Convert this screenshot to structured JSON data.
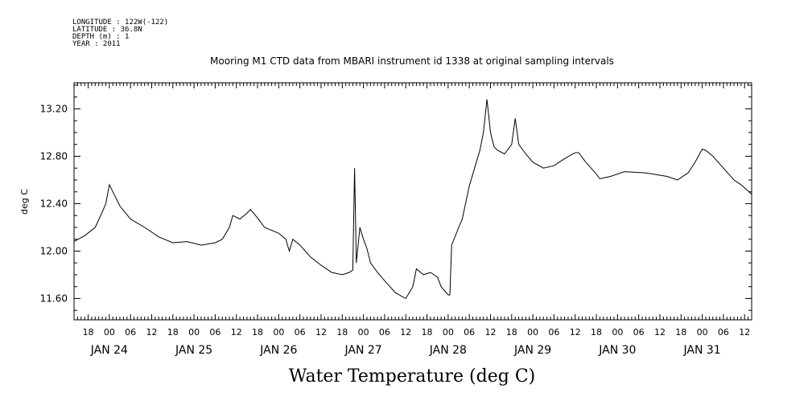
{
  "meta": {
    "longitude": "LONGITUDE : 122W(-122)",
    "latitude": "LATITUDE : 36.8N",
    "depth": "DEPTH (m) : 1",
    "year": "YEAR : 2011"
  },
  "chart_data": {
    "type": "line",
    "title": "Mooring M1 CTD data from MBARI instrument id 1338 at original sampling intervals",
    "xlabel": "Water Temperature (deg C)",
    "ylabel": "deg C",
    "ylim": [
      11.42,
      13.42
    ],
    "yticks": [
      "11.60",
      "12.00",
      "12.40",
      "12.80",
      "13.20"
    ],
    "xlim": [
      "2011-01-23T14:00",
      "2011-01-31T14:00"
    ],
    "hour_ticks": [
      "18",
      "00",
      "06",
      "12",
      "18",
      "00",
      "06",
      "12",
      "18",
      "00",
      "06",
      "12",
      "18",
      "00",
      "06",
      "12",
      "18",
      "00",
      "06",
      "12",
      "18",
      "00",
      "06",
      "12",
      "18",
      "00",
      "06",
      "12",
      "18",
      "00",
      "06",
      "12"
    ],
    "day_labels": [
      "JAN 24",
      "JAN 25",
      "JAN 26",
      "JAN 27",
      "JAN 28",
      "JAN 29",
      "JAN 30",
      "JAN 31"
    ],
    "grid": false,
    "series": [
      {
        "color": "#000000",
        "points": [
          [
            "2011-01-23T14:00",
            12.08
          ],
          [
            "2011-01-23T17:00",
            12.13
          ],
          [
            "2011-01-23T20:00",
            12.2
          ],
          [
            "2011-01-23T22:00",
            12.33
          ],
          [
            "2011-01-23T23:00",
            12.4
          ],
          [
            "2011-01-24T00:00",
            12.56
          ],
          [
            "2011-01-24T01:00",
            12.5
          ],
          [
            "2011-01-24T03:00",
            12.38
          ],
          [
            "2011-01-24T06:00",
            12.27
          ],
          [
            "2011-01-24T10:00",
            12.2
          ],
          [
            "2011-01-24T14:00",
            12.12
          ],
          [
            "2011-01-24T18:00",
            12.07
          ],
          [
            "2011-01-24T22:00",
            12.08
          ],
          [
            "2011-01-25T02:00",
            12.05
          ],
          [
            "2011-01-25T06:00",
            12.07
          ],
          [
            "2011-01-25T08:00",
            12.1
          ],
          [
            "2011-01-25T10:00",
            12.2
          ],
          [
            "2011-01-25T11:00",
            12.3
          ],
          [
            "2011-01-25T13:00",
            12.27
          ],
          [
            "2011-01-25T15:00",
            12.32
          ],
          [
            "2011-01-25T16:00",
            12.35
          ],
          [
            "2011-01-25T18:00",
            12.28
          ],
          [
            "2011-01-25T20:00",
            12.2
          ],
          [
            "2011-01-26T00:00",
            12.15
          ],
          [
            "2011-01-26T02:00",
            12.1
          ],
          [
            "2011-01-26T03:00",
            12.0
          ],
          [
            "2011-01-26T04:00",
            12.1
          ],
          [
            "2011-01-26T06:00",
            12.05
          ],
          [
            "2011-01-26T09:00",
            11.95
          ],
          [
            "2011-01-26T12:00",
            11.88
          ],
          [
            "2011-01-26T15:00",
            11.82
          ],
          [
            "2011-01-26T18:00",
            11.8
          ],
          [
            "2011-01-26T20:00",
            11.82
          ],
          [
            "2011-01-26T21:00",
            11.84
          ],
          [
            "2011-01-26T21:30",
            12.7
          ],
          [
            "2011-01-26T22:00",
            11.9
          ],
          [
            "2011-01-26T23:00",
            12.2
          ],
          [
            "2011-01-27T00:00",
            12.1
          ],
          [
            "2011-01-27T01:00",
            12.02
          ],
          [
            "2011-01-27T02:00",
            11.9
          ],
          [
            "2011-01-27T04:00",
            11.82
          ],
          [
            "2011-01-27T06:00",
            11.75
          ],
          [
            "2011-01-27T09:00",
            11.65
          ],
          [
            "2011-01-27T12:00",
            11.6
          ],
          [
            "2011-01-27T14:00",
            11.7
          ],
          [
            "2011-01-27T15:00",
            11.85
          ],
          [
            "2011-01-27T17:00",
            11.8
          ],
          [
            "2011-01-27T19:00",
            11.82
          ],
          [
            "2011-01-27T21:00",
            11.78
          ],
          [
            "2011-01-27T22:00",
            11.7
          ],
          [
            "2011-01-28T00:00",
            11.63
          ],
          [
            "2011-01-28T00:30",
            11.63
          ],
          [
            "2011-01-28T01:00",
            12.05
          ],
          [
            "2011-01-28T03:00",
            12.2
          ],
          [
            "2011-01-28T04:00",
            12.27
          ],
          [
            "2011-01-28T06:00",
            12.55
          ],
          [
            "2011-01-28T08:00",
            12.75
          ],
          [
            "2011-01-28T09:00",
            12.85
          ],
          [
            "2011-01-28T10:00",
            13.0
          ],
          [
            "2011-01-28T11:00",
            13.28
          ],
          [
            "2011-01-28T12:00",
            13.0
          ],
          [
            "2011-01-28T13:00",
            12.88
          ],
          [
            "2011-01-28T14:00",
            12.85
          ],
          [
            "2011-01-28T16:00",
            12.82
          ],
          [
            "2011-01-28T18:00",
            12.9
          ],
          [
            "2011-01-28T19:00",
            13.12
          ],
          [
            "2011-01-28T20:00",
            12.9
          ],
          [
            "2011-01-28T22:00",
            12.82
          ],
          [
            "2011-01-29T00:00",
            12.75
          ],
          [
            "2011-01-29T03:00",
            12.7
          ],
          [
            "2011-01-29T06:00",
            12.72
          ],
          [
            "2011-01-29T09:00",
            12.78
          ],
          [
            "2011-01-29T12:00",
            12.83
          ],
          [
            "2011-01-29T13:00",
            12.83
          ],
          [
            "2011-01-29T15:00",
            12.75
          ],
          [
            "2011-01-29T18:00",
            12.65
          ],
          [
            "2011-01-29T19:00",
            12.61
          ],
          [
            "2011-01-29T22:00",
            12.63
          ],
          [
            "2011-01-30T02:00",
            12.67
          ],
          [
            "2011-01-30T08:00",
            12.66
          ],
          [
            "2011-01-30T14:00",
            12.63
          ],
          [
            "2011-01-30T17:00",
            12.6
          ],
          [
            "2011-01-30T20:00",
            12.66
          ],
          [
            "2011-01-30T22:00",
            12.75
          ],
          [
            "2011-01-31T00:00",
            12.86
          ],
          [
            "2011-01-31T01:00",
            12.85
          ],
          [
            "2011-01-31T03:00",
            12.8
          ],
          [
            "2011-01-31T06:00",
            12.7
          ],
          [
            "2011-01-31T09:00",
            12.6
          ],
          [
            "2011-01-31T11:00",
            12.56
          ],
          [
            "2011-01-31T14:00",
            12.48
          ]
        ]
      }
    ]
  }
}
